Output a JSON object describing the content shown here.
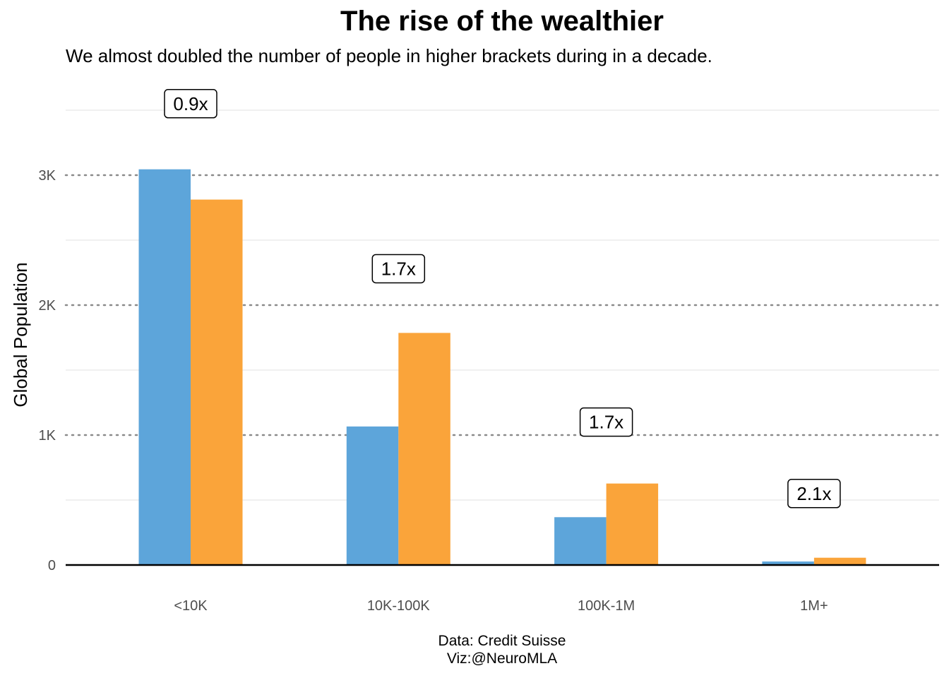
{
  "title": "The rise of the wealthier",
  "subtitle": "We almost doubled the number of people in higher brackets during in a decade.",
  "caption_line1": "Data: Credit Suisse",
  "caption_line2": "Viz:@NeuroMLA",
  "chart_data": {
    "type": "bar",
    "title": "The rise of the wealthier",
    "subtitle": "We almost doubled the number of people in higher brackets during in a decade.",
    "xlabel": "",
    "ylabel": "Global Population",
    "categories": [
      "<10K",
      "10K-100K",
      "100K-1M",
      "1M+"
    ],
    "series": [
      {
        "color": "#5DA5DA",
        "values": [
          3045,
          1066,
          368,
          27
        ]
      },
      {
        "color": "#FAA43A",
        "values": [
          2812,
          1786,
          627,
          56
        ]
      }
    ],
    "annotations": [
      {
        "category": "<10K",
        "label": "0.9x",
        "y": 3550
      },
      {
        "category": "10K-100K",
        "label": "1.7x",
        "y": 2280
      },
      {
        "category": "100K-1M",
        "label": "1.7x",
        "y": 1100
      },
      {
        "category": "1M+",
        "label": "2.1x",
        "y": 550
      }
    ],
    "ylim": [
      0,
      3500
    ],
    "yticks": [
      0,
      1000,
      2000,
      3000
    ],
    "ytick_labels": [
      "0",
      "1K",
      "2K",
      "3K"
    ],
    "grid": true,
    "legend": "none",
    "caption": "Data: Credit Suisse\nViz:@NeuroMLA"
  }
}
